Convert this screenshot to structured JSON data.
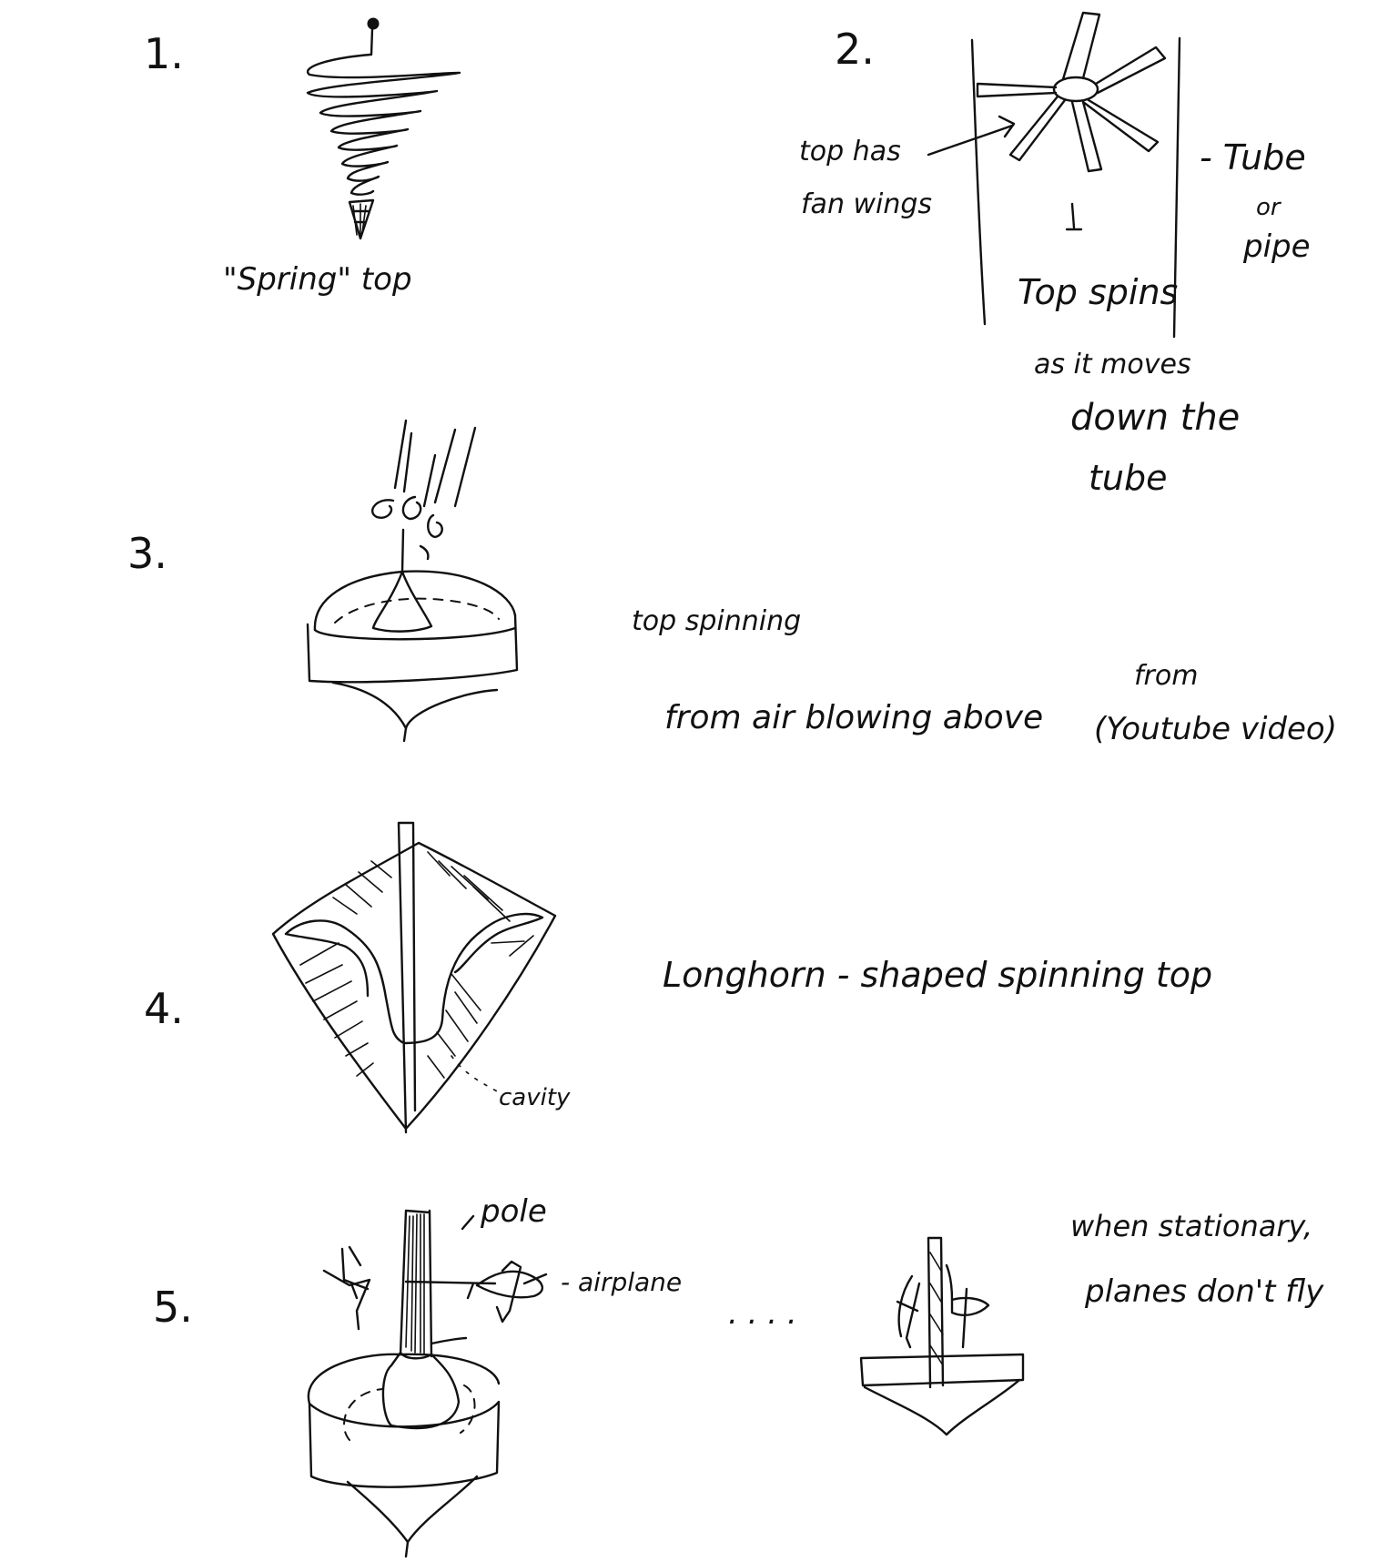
{
  "sketches": [
    {
      "number": "1.",
      "caption": "\"Spring\" top"
    },
    {
      "number": "2.",
      "labels": {
        "wings": [
          "top has",
          "fan wings"
        ],
        "tube": [
          "- Tube",
          "or",
          "pipe"
        ],
        "motion": [
          "Top spins",
          "as it moves",
          "down the",
          "tube"
        ]
      }
    },
    {
      "number": "3.",
      "caption": [
        "top spinning",
        "from air blowing above",
        "from",
        "(Youtube video)"
      ]
    },
    {
      "number": "4.",
      "caption": "Longhorn - shaped spinning top",
      "labels": {
        "cavity": "cavity"
      }
    },
    {
      "number": "5.",
      "labels": {
        "pole": "pole",
        "airplane": "- airplane",
        "ellipsis": ". . . ."
      },
      "caption": [
        "when stationary,",
        "planes don't fly"
      ]
    }
  ]
}
